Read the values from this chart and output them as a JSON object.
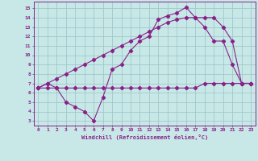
{
  "background_color": "#c8e8e8",
  "grid_color": "#a0c8c8",
  "line_color": "#882288",
  "xlabel": "Windchill (Refroidissement éolien,°C)",
  "xlim": [
    -0.5,
    23.5
  ],
  "ylim": [
    2.5,
    15.7
  ],
  "yticks": [
    3,
    4,
    5,
    6,
    7,
    8,
    9,
    10,
    11,
    12,
    13,
    14,
    15
  ],
  "xticks": [
    0,
    1,
    2,
    3,
    4,
    5,
    6,
    7,
    8,
    9,
    10,
    11,
    12,
    13,
    14,
    15,
    16,
    17,
    18,
    19,
    20,
    21,
    22,
    23
  ],
  "curve1_x": [
    0,
    1,
    2,
    3,
    4,
    5,
    6,
    7,
    8,
    9,
    10,
    11,
    12,
    13,
    14,
    15,
    16,
    17,
    18,
    19,
    20,
    21,
    22,
    23
  ],
  "curve1_y": [
    6.5,
    6.5,
    6.5,
    6.5,
    6.5,
    6.5,
    6.5,
    6.5,
    6.5,
    6.5,
    6.5,
    6.5,
    6.5,
    6.5,
    6.5,
    6.5,
    6.5,
    6.5,
    7.0,
    7.0,
    7.0,
    7.0,
    7.0,
    7.0
  ],
  "curve2_x": [
    0,
    1,
    2,
    3,
    4,
    5,
    6,
    7,
    8,
    9,
    10,
    11,
    12,
    13,
    14,
    15,
    16,
    17,
    18,
    19,
    20,
    21,
    22,
    23
  ],
  "curve2_y": [
    6.5,
    7.0,
    7.5,
    8.0,
    8.5,
    9.0,
    9.5,
    10.0,
    10.5,
    11.0,
    11.5,
    12.0,
    12.5,
    13.0,
    13.5,
    13.8,
    14.0,
    14.0,
    14.0,
    14.0,
    13.0,
    11.5,
    7.0,
    7.0
  ],
  "curve3_x": [
    0,
    1,
    2,
    3,
    4,
    5,
    6,
    7,
    8,
    9,
    10,
    11,
    12,
    13,
    14,
    15,
    16,
    17,
    18,
    19,
    20,
    21,
    22,
    23
  ],
  "curve3_y": [
    6.5,
    7.0,
    6.5,
    5.0,
    4.5,
    4.0,
    3.0,
    5.5,
    8.5,
    9.0,
    10.5,
    11.5,
    12.0,
    13.8,
    14.2,
    14.5,
    15.1,
    14.0,
    13.0,
    11.5,
    11.5,
    9.0,
    7.0,
    7.0
  ]
}
